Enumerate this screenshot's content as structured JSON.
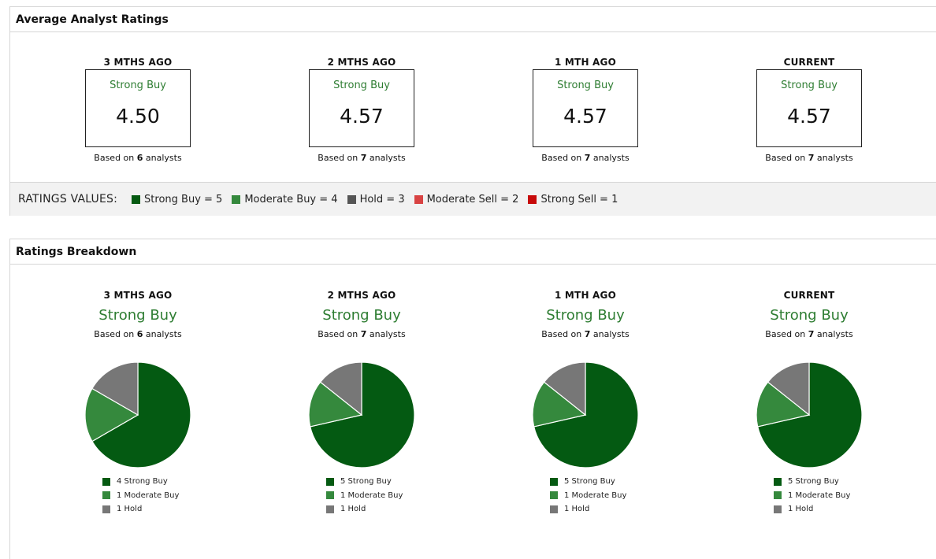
{
  "avg_panel": {
    "title": "Average Analyst Ratings",
    "columns": [
      {
        "label": "3 MTHS AGO",
        "rating": "Strong Buy",
        "score": "4.50",
        "based_prefix": "Based on ",
        "count": "6",
        "based_suffix": " analysts"
      },
      {
        "label": "2 MTHS AGO",
        "rating": "Strong Buy",
        "score": "4.57",
        "based_prefix": "Based on ",
        "count": "7",
        "based_suffix": " analysts"
      },
      {
        "label": "1 MTH AGO",
        "rating": "Strong Buy",
        "score": "4.57",
        "based_prefix": "Based on ",
        "count": "7",
        "based_suffix": " analysts"
      },
      {
        "label": "CURRENT",
        "rating": "Strong Buy",
        "score": "4.57",
        "based_prefix": "Based on ",
        "count": "7",
        "based_suffix": " analysts"
      }
    ],
    "values_title": "RATINGS VALUES:",
    "values": [
      {
        "label": "Strong Buy = 5",
        "color": "#065a12"
      },
      {
        "label": "Moderate Buy = 4",
        "color": "#35893d"
      },
      {
        "label": "Hold = 3",
        "color": "#555555"
      },
      {
        "label": "Moderate Sell = 2",
        "color": "#d84343"
      },
      {
        "label": "Strong Sell = 1",
        "color": "#c70a0a"
      }
    ]
  },
  "breakdown_panel": {
    "title": "Ratings Breakdown",
    "columns": [
      {
        "label": "3 MTHS AGO",
        "rating": "Strong Buy",
        "based_prefix": "Based on ",
        "count": "6",
        "based_suffix": " analysts"
      },
      {
        "label": "2 MTHS AGO",
        "rating": "Strong Buy",
        "based_prefix": "Based on ",
        "count": "7",
        "based_suffix": " analysts"
      },
      {
        "label": "1 MTH AGO",
        "rating": "Strong Buy",
        "based_prefix": "Based on ",
        "count": "7",
        "based_suffix": " analysts"
      },
      {
        "label": "CURRENT",
        "rating": "Strong Buy",
        "based_prefix": "Based on ",
        "count": "7",
        "based_suffix": " analysts"
      }
    ]
  },
  "chart_data": [
    {
      "type": "pie",
      "title": "3 MTHS AGO",
      "categories": [
        "Strong Buy",
        "Moderate Buy",
        "Hold"
      ],
      "values": [
        4,
        1,
        1
      ],
      "legend": [
        "4 Strong Buy",
        "1 Moderate Buy",
        "1 Hold"
      ],
      "colors": [
        "#045a12",
        "#35893d",
        "#777777"
      ]
    },
    {
      "type": "pie",
      "title": "2 MTHS AGO",
      "categories": [
        "Strong Buy",
        "Moderate Buy",
        "Hold"
      ],
      "values": [
        5,
        1,
        1
      ],
      "legend": [
        "5 Strong Buy",
        "1 Moderate Buy",
        "1 Hold"
      ],
      "colors": [
        "#045a12",
        "#35893d",
        "#777777"
      ]
    },
    {
      "type": "pie",
      "title": "1 MTH AGO",
      "categories": [
        "Strong Buy",
        "Moderate Buy",
        "Hold"
      ],
      "values": [
        5,
        1,
        1
      ],
      "legend": [
        "5 Strong Buy",
        "1 Moderate Buy",
        "1 Hold"
      ],
      "colors": [
        "#045a12",
        "#35893d",
        "#777777"
      ]
    },
    {
      "type": "pie",
      "title": "CURRENT",
      "categories": [
        "Strong Buy",
        "Moderate Buy",
        "Hold"
      ],
      "values": [
        5,
        1,
        1
      ],
      "legend": [
        "5 Strong Buy",
        "1 Moderate Buy",
        "1 Hold"
      ],
      "colors": [
        "#045a12",
        "#35893d",
        "#777777"
      ]
    }
  ]
}
